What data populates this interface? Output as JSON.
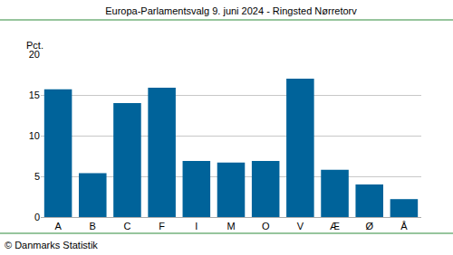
{
  "chart_data": {
    "type": "bar",
    "title": "Europa-Parlamentsvalg 9. juni 2024 - Ringsted Nørretorv",
    "ylabel": "Pct.",
    "annotations": [
      "© Danmarks Statistik"
    ],
    "categories": [
      "A",
      "B",
      "C",
      "F",
      "I",
      "M",
      "O",
      "V",
      "Æ",
      "Ø",
      "Å"
    ],
    "values": [
      15.7,
      5.4,
      14.0,
      15.9,
      6.9,
      6.7,
      6.9,
      17.0,
      5.8,
      4.0,
      2.2
    ],
    "color": "#00639a",
    "ylim": [
      0,
      20
    ],
    "yticks": [
      0,
      5,
      10,
      15,
      20
    ],
    "grid": true
  }
}
